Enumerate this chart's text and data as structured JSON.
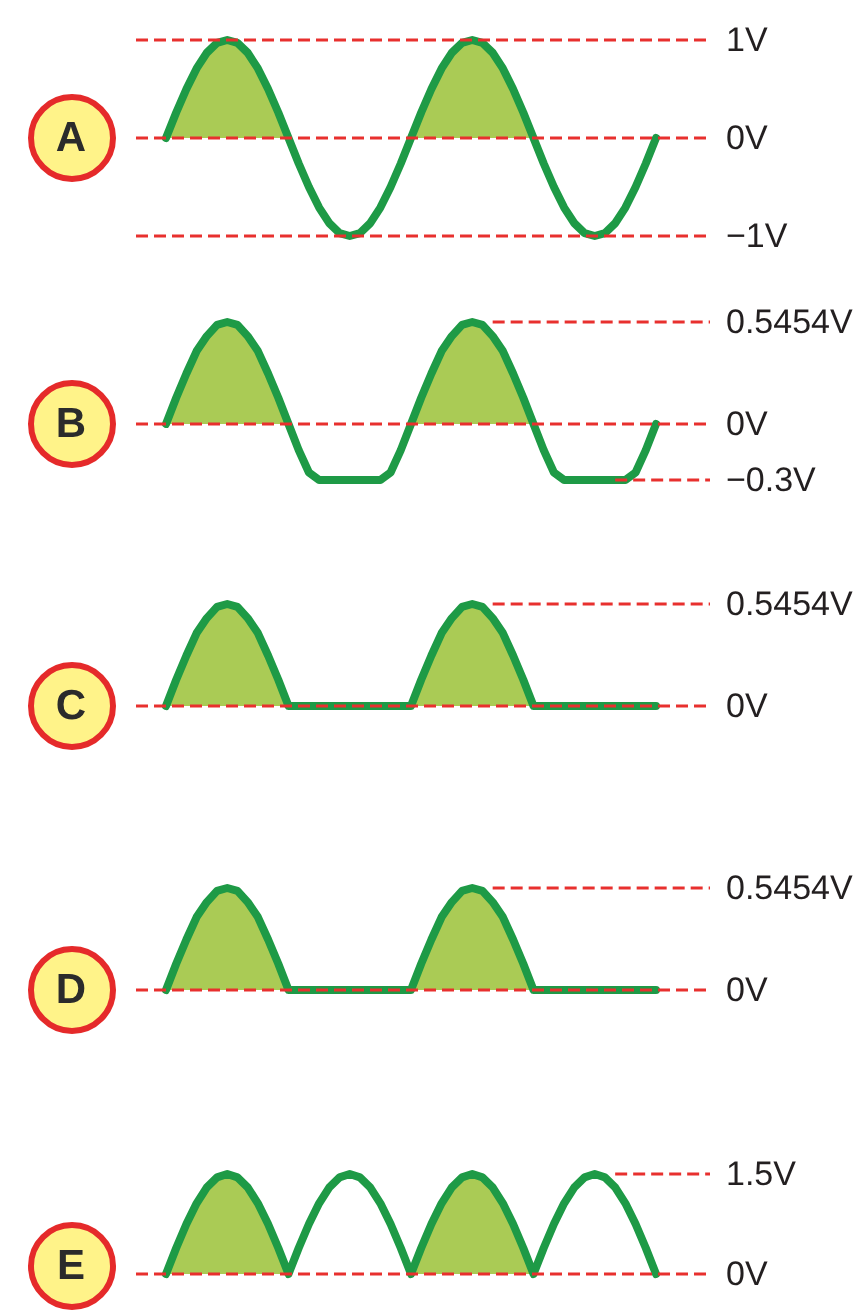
{
  "chart_data": [
    {
      "type": "line",
      "title": "A",
      "marker": "none",
      "line_style": "solid",
      "tick_labels": "y",
      "ylim": [
        -1,
        1
      ],
      "yticks": [
        {
          "value": -1,
          "label": "−1V"
        },
        {
          "value": 0,
          "label": "0V"
        },
        {
          "value": 1,
          "label": "1V"
        }
      ],
      "categories": [
        null,
        null,
        null,
        null,
        null,
        null,
        null,
        null,
        null,
        null,
        null,
        null,
        null,
        null,
        null,
        null,
        null,
        null,
        null,
        null,
        null,
        null,
        null,
        null,
        null,
        null,
        null,
        null,
        null,
        null,
        null,
        null,
        null,
        null,
        null,
        null,
        null,
        null,
        null,
        null,
        null,
        null,
        null,
        null,
        null,
        null,
        null,
        null,
        null
      ],
      "series": [
        {
          "type": "line",
          "color": "#1e9a46",
          "values": [
            0,
            0.26,
            0.5,
            0.71,
            0.87,
            0.97,
            1,
            0.97,
            0.87,
            0.71,
            0.5,
            0.26,
            0,
            -0.26,
            -0.5,
            -0.71,
            -0.87,
            -0.97,
            -1,
            -0.97,
            -0.87,
            -0.71,
            -0.5,
            -0.26,
            0,
            0.26,
            0.5,
            0.71,
            0.87,
            0.97,
            1,
            0.97,
            0.87,
            0.71,
            0.5,
            0.26,
            0,
            -0.26,
            -0.5,
            -0.71,
            -0.87,
            -0.97,
            -1,
            -0.97,
            -0.87,
            -0.71,
            -0.5,
            -0.26,
            0
          ]
        },
        {
          "type": "area",
          "color": "#aacb55",
          "values": [
            0,
            0.26,
            0.5,
            0.71,
            0.87,
            0.97,
            1,
            0.97,
            0.87,
            0.71,
            0.5,
            0.26,
            0,
            null,
            null,
            null,
            null,
            null,
            null,
            null,
            null,
            null,
            null,
            null,
            0,
            0.26,
            0.5,
            0.71,
            0.87,
            0.97,
            1,
            0.97,
            0.87,
            0.71,
            0.5,
            0.26,
            0,
            null,
            null,
            null,
            null,
            null,
            null,
            null,
            null,
            null,
            null,
            null,
            null
          ]
        }
      ],
      "ref_lines": [
        {
          "axis": "y",
          "value": 1,
          "color": "#e8302e",
          "line_style": "dashed"
        },
        {
          "axis": "y",
          "value": 0,
          "color": "#e8302e",
          "line_style": "dashed"
        },
        {
          "axis": "y",
          "value": -1,
          "color": "#e8302e",
          "line_style": "dashed"
        }
      ]
    },
    {
      "type": "line",
      "title": "B",
      "marker": "none",
      "line_style": "solid",
      "tick_labels": "y",
      "ylim": [
        -0.3,
        0.5454
      ],
      "yticks": [
        {
          "value": -0.3,
          "label": "−0.3V"
        },
        {
          "value": 0,
          "label": "0V"
        },
        {
          "value": 0.5454,
          "label": "0.5454V"
        }
      ],
      "categories": [
        null,
        null,
        null,
        null,
        null,
        null,
        null,
        null,
        null,
        null,
        null,
        null,
        null,
        null,
        null,
        null,
        null,
        null,
        null,
        null,
        null,
        null,
        null,
        null,
        null,
        null,
        null,
        null,
        null,
        null,
        null,
        null,
        null,
        null,
        null,
        null,
        null,
        null,
        null,
        null,
        null,
        null,
        null,
        null,
        null,
        null,
        null,
        null,
        null
      ],
      "series": [
        {
          "type": "line",
          "color": "#1e9a46",
          "values": [
            0,
            0.14,
            0.27,
            0.39,
            0.47,
            0.53,
            0.5454,
            0.53,
            0.47,
            0.39,
            0.27,
            0.14,
            0,
            -0.14,
            -0.26,
            -0.3,
            -0.3,
            -0.3,
            -0.3,
            -0.3,
            -0.3,
            -0.3,
            -0.26,
            -0.14,
            0,
            0.14,
            0.27,
            0.39,
            0.47,
            0.53,
            0.5454,
            0.53,
            0.47,
            0.39,
            0.27,
            0.14,
            0,
            -0.14,
            -0.26,
            -0.3,
            -0.3,
            -0.3,
            -0.3,
            -0.3,
            -0.3,
            -0.3,
            -0.26,
            -0.14,
            0
          ]
        },
        {
          "type": "area",
          "color": "#aacb55",
          "values": [
            0,
            0.14,
            0.27,
            0.39,
            0.47,
            0.53,
            0.5454,
            0.53,
            0.47,
            0.39,
            0.27,
            0.14,
            0,
            null,
            null,
            null,
            null,
            null,
            null,
            null,
            null,
            null,
            null,
            null,
            0,
            0.14,
            0.27,
            0.39,
            0.47,
            0.53,
            0.5454,
            0.53,
            0.47,
            0.39,
            0.27,
            0.14,
            0,
            null,
            null,
            null,
            null,
            null,
            null,
            null,
            null,
            null,
            null,
            null,
            null
          ]
        }
      ],
      "ref_lines": [
        {
          "axis": "y",
          "value": 0.5454,
          "color": "#e8302e",
          "line_style": "dashed"
        },
        {
          "axis": "y",
          "value": 0,
          "color": "#e8302e",
          "line_style": "dashed"
        },
        {
          "axis": "y",
          "value": -0.3,
          "color": "#e8302e",
          "line_style": "dashed"
        }
      ]
    },
    {
      "type": "line",
      "title": "C",
      "marker": "none",
      "line_style": "solid",
      "tick_labels": "y",
      "ylim": [
        0,
        0.5454
      ],
      "yticks": [
        {
          "value": 0,
          "label": "0V"
        },
        {
          "value": 0.5454,
          "label": "0.5454V"
        }
      ],
      "categories": [
        null,
        null,
        null,
        null,
        null,
        null,
        null,
        null,
        null,
        null,
        null,
        null,
        null,
        null,
        null,
        null,
        null,
        null,
        null,
        null,
        null,
        null,
        null,
        null,
        null,
        null,
        null,
        null,
        null,
        null,
        null,
        null,
        null,
        null,
        null,
        null,
        null,
        null,
        null,
        null,
        null,
        null,
        null,
        null,
        null,
        null,
        null,
        null,
        null
      ],
      "series": [
        {
          "type": "line",
          "color": "#1e9a46",
          "values": [
            0,
            0.14,
            0.27,
            0.39,
            0.47,
            0.53,
            0.5454,
            0.53,
            0.47,
            0.39,
            0.27,
            0.14,
            0,
            0,
            0,
            0,
            0,
            0,
            0,
            0,
            0,
            0,
            0,
            0,
            0,
            0.14,
            0.27,
            0.39,
            0.47,
            0.53,
            0.5454,
            0.53,
            0.47,
            0.39,
            0.27,
            0.14,
            0,
            0,
            0,
            0,
            0,
            0,
            0,
            0,
            0,
            0,
            0,
            0,
            0
          ]
        },
        {
          "type": "area",
          "color": "#aacb55",
          "values": [
            0,
            0.14,
            0.27,
            0.39,
            0.47,
            0.53,
            0.5454,
            0.53,
            0.47,
            0.39,
            0.27,
            0.14,
            0,
            null,
            null,
            null,
            null,
            null,
            null,
            null,
            null,
            null,
            null,
            null,
            0,
            0.14,
            0.27,
            0.39,
            0.47,
            0.53,
            0.5454,
            0.53,
            0.47,
            0.39,
            0.27,
            0.14,
            0,
            null,
            null,
            null,
            null,
            null,
            null,
            null,
            null,
            null,
            null,
            null,
            null
          ]
        }
      ],
      "ref_lines": [
        {
          "axis": "y",
          "value": 0.5454,
          "color": "#e8302e",
          "line_style": "dashed"
        },
        {
          "axis": "y",
          "value": 0,
          "color": "#e8302e",
          "line_style": "dashed"
        }
      ]
    },
    {
      "type": "line",
      "title": "D",
      "marker": "none",
      "line_style": "solid",
      "tick_labels": "y",
      "ylim": [
        0,
        0.5454
      ],
      "yticks": [
        {
          "value": 0,
          "label": "0V"
        },
        {
          "value": 0.5454,
          "label": "0.5454V"
        }
      ],
      "categories": [
        null,
        null,
        null,
        null,
        null,
        null,
        null,
        null,
        null,
        null,
        null,
        null,
        null,
        null,
        null,
        null,
        null,
        null,
        null,
        null,
        null,
        null,
        null,
        null,
        null,
        null,
        null,
        null,
        null,
        null,
        null,
        null,
        null,
        null,
        null,
        null,
        null,
        null,
        null,
        null,
        null,
        null,
        null,
        null,
        null,
        null,
        null,
        null,
        null
      ],
      "series": [
        {
          "type": "line",
          "color": "#1e9a46",
          "values": [
            0,
            0.14,
            0.27,
            0.39,
            0.47,
            0.53,
            0.5454,
            0.53,
            0.47,
            0.39,
            0.27,
            0.14,
            0,
            0,
            0,
            0,
            0,
            0,
            0,
            0,
            0,
            0,
            0,
            0,
            0,
            0.14,
            0.27,
            0.39,
            0.47,
            0.53,
            0.5454,
            0.53,
            0.47,
            0.39,
            0.27,
            0.14,
            0,
            0,
            0,
            0,
            0,
            0,
            0,
            0,
            0,
            0,
            0,
            0,
            0
          ]
        },
        {
          "type": "area",
          "color": "#aacb55",
          "values": [
            0,
            0.14,
            0.27,
            0.39,
            0.47,
            0.53,
            0.5454,
            0.53,
            0.47,
            0.39,
            0.27,
            0.14,
            0,
            null,
            null,
            null,
            null,
            null,
            null,
            null,
            null,
            null,
            null,
            null,
            0,
            0.14,
            0.27,
            0.39,
            0.47,
            0.53,
            0.5454,
            0.53,
            0.47,
            0.39,
            0.27,
            0.14,
            0,
            null,
            null,
            null,
            null,
            null,
            null,
            null,
            null,
            null,
            null,
            null,
            null
          ]
        }
      ],
      "ref_lines": [
        {
          "axis": "y",
          "value": 0.5454,
          "color": "#e8302e",
          "line_style": "dashed"
        },
        {
          "axis": "y",
          "value": 0,
          "color": "#e8302e",
          "line_style": "dashed"
        }
      ]
    },
    {
      "type": "line",
      "title": "E",
      "marker": "none",
      "line_style": "solid",
      "tick_labels": "y",
      "ylim": [
        0,
        1.5
      ],
      "yticks": [
        {
          "value": 0,
          "label": "0V"
        },
        {
          "value": 1.5,
          "label": "1.5V"
        }
      ],
      "categories": [
        null,
        null,
        null,
        null,
        null,
        null,
        null,
        null,
        null,
        null,
        null,
        null,
        null,
        null,
        null,
        null,
        null,
        null,
        null,
        null,
        null,
        null,
        null,
        null,
        null,
        null,
        null,
        null,
        null,
        null,
        null,
        null,
        null,
        null,
        null,
        null,
        null,
        null,
        null,
        null,
        null,
        null,
        null,
        null,
        null,
        null,
        null,
        null,
        null
      ],
      "series": [
        {
          "type": "line",
          "color": "#1e9a46",
          "values": [
            0,
            0.39,
            0.75,
            1.06,
            1.3,
            1.45,
            1.5,
            1.45,
            1.3,
            1.06,
            0.75,
            0.39,
            0,
            0.39,
            0.75,
            1.06,
            1.3,
            1.45,
            1.5,
            1.45,
            1.3,
            1.06,
            0.75,
            0.39,
            0,
            0.39,
            0.75,
            1.06,
            1.3,
            1.45,
            1.5,
            1.45,
            1.3,
            1.06,
            0.75,
            0.39,
            0,
            0.39,
            0.75,
            1.06,
            1.3,
            1.45,
            1.5,
            1.45,
            1.3,
            1.06,
            0.75,
            0.39,
            0
          ]
        },
        {
          "type": "area",
          "color": "#aacb55",
          "values": [
            0,
            0.39,
            0.75,
            1.06,
            1.3,
            1.45,
            1.5,
            1.45,
            1.3,
            1.06,
            0.75,
            0.39,
            0,
            null,
            null,
            null,
            null,
            null,
            null,
            null,
            null,
            null,
            null,
            null,
            0,
            0.39,
            0.75,
            1.06,
            1.3,
            1.45,
            1.5,
            1.45,
            1.3,
            1.06,
            0.75,
            0.39,
            0,
            null,
            null,
            null,
            null,
            null,
            null,
            null,
            null,
            null,
            null,
            null,
            null
          ]
        }
      ],
      "ref_lines": [
        {
          "axis": "y",
          "value": 1.5,
          "color": "#e8302e",
          "line_style": "dashed"
        },
        {
          "axis": "y",
          "value": 0,
          "color": "#e8302e",
          "line_style": "dashed"
        }
      ]
    }
  ]
}
